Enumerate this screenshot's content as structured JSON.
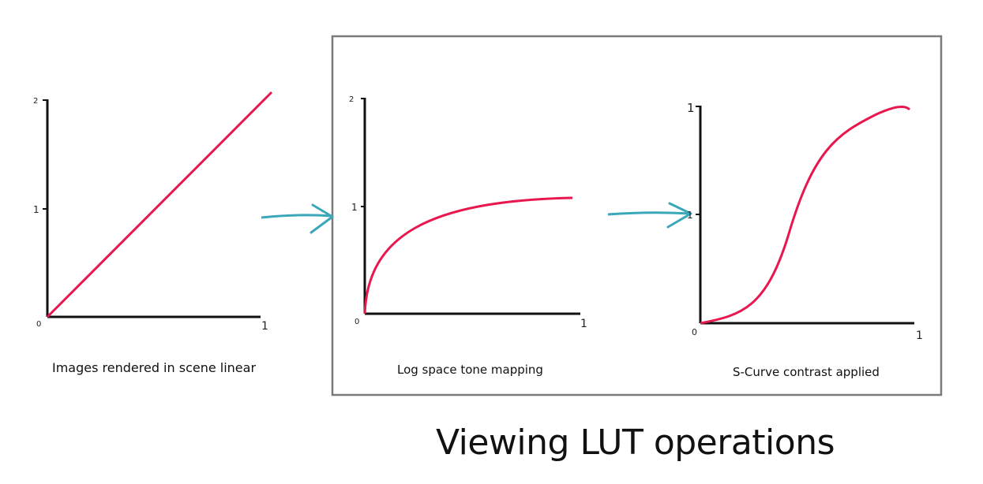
{
  "title": "Viewing LUT operations",
  "arrow_color": "#3aa8b8",
  "curve_color": "#e8174d",
  "axis_color": "#111111",
  "frame_color": "#7a7a7a",
  "panels": [
    {
      "caption": "Images rendered in scene linear",
      "x_tick_labels": [
        "0",
        "1"
      ],
      "y_tick_labels": [
        "1",
        "2"
      ],
      "curve_type": "linear"
    },
    {
      "caption": "Log space tone mapping",
      "x_tick_labels": [
        "0",
        "1"
      ],
      "y_tick_labels": [
        "1",
        "2"
      ],
      "curve_type": "log"
    },
    {
      "caption": "S-Curve contrast applied",
      "x_tick_labels": [
        "0",
        "1"
      ],
      "y_tick_labels": [
        "1",
        "1"
      ],
      "curve_type": "s-curve"
    }
  ]
}
